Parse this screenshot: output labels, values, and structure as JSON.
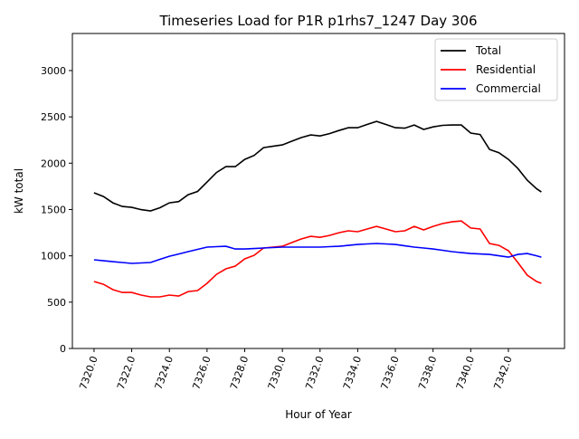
{
  "chart_data": {
    "type": "line",
    "title": "Timeseries Load for P1R p1rhs7_1247  Day 306",
    "xlabel": "Hour of Year",
    "ylabel": "kW total",
    "xlim": [
      7318.85,
      7344.98
    ],
    "ylim": [
      0,
      3400
    ],
    "xticks": [
      7320,
      7322,
      7324,
      7326,
      7328,
      7330,
      7332,
      7334,
      7336,
      7338,
      7340,
      7342
    ],
    "xtick_labels": [
      "7320.0",
      "7322.0",
      "7324.0",
      "7326.0",
      "7328.0",
      "7330.0",
      "7332.0",
      "7334.0",
      "7336.0",
      "7338.0",
      "7340.0",
      "7342.0"
    ],
    "yticks": [
      0,
      500,
      1000,
      1500,
      2000,
      2500,
      3000
    ],
    "ytick_labels": [
      "0",
      "500",
      "1000",
      "1500",
      "2000",
      "2500",
      "3000"
    ],
    "grid": false,
    "legend_position": "top-right",
    "x": [
      7320,
      7320.5,
      7321,
      7321.5,
      7322,
      7322.5,
      7323,
      7323.5,
      7324,
      7324.5,
      7325,
      7325.5,
      7326,
      7326.5,
      7327,
      7327.5,
      7328,
      7328.5,
      7329,
      7329.5,
      7330,
      7330.5,
      7331,
      7331.5,
      7332,
      7332.5,
      7333,
      7333.5,
      7334,
      7334.5,
      7335,
      7335.5,
      7336,
      7336.5,
      7337,
      7337.5,
      7338,
      7338.5,
      7339,
      7339.5,
      7340,
      7340.5,
      7341,
      7341.5,
      7342,
      7342.5,
      7343,
      7343.5,
      7343.75
    ],
    "series": [
      {
        "name": "Total",
        "color": "#000000",
        "values": [
          1680,
          1640,
          1572,
          1533,
          1523,
          1499,
          1485,
          1519,
          1572,
          1586,
          1660,
          1695,
          1797,
          1899,
          1963,
          1963,
          2041,
          2084,
          2168,
          2183,
          2197,
          2237,
          2276,
          2305,
          2294,
          2319,
          2353,
          2383,
          2383,
          2418,
          2451,
          2418,
          2383,
          2378,
          2412,
          2364,
          2392,
          2408,
          2412,
          2412,
          2325,
          2310,
          2148,
          2113,
          2041,
          1943,
          1816,
          1723,
          1689
        ]
      },
      {
        "name": "Residential",
        "color": "#ff0000",
        "values": [
          723,
          693,
          635,
          605,
          605,
          576,
          557,
          557,
          576,
          566,
          615,
          625,
          703,
          800,
          860,
          889,
          967,
          1005,
          1084,
          1094,
          1103,
          1143,
          1182,
          1211,
          1200,
          1220,
          1250,
          1270,
          1260,
          1290,
          1318,
          1290,
          1260,
          1270,
          1318,
          1280,
          1318,
          1348,
          1367,
          1377,
          1300,
          1290,
          1133,
          1113,
          1055,
          928,
          791,
          723,
          703
        ]
      },
      {
        "name": "Commercial",
        "color": "#0000ff",
        "values": [
          957,
          947,
          937,
          928,
          918,
          923,
          928,
          962,
          996,
          1020,
          1045,
          1070,
          1094,
          1099,
          1103,
          1074,
          1074,
          1079,
          1084,
          1089,
          1094,
          1094,
          1094,
          1094,
          1094,
          1099,
          1103,
          1113,
          1123,
          1128,
          1133,
          1128,
          1123,
          1108,
          1094,
          1084,
          1074,
          1060,
          1045,
          1035,
          1025,
          1020,
          1015,
          1000,
          986,
          1015,
          1025,
          1000,
          986
        ]
      }
    ]
  }
}
